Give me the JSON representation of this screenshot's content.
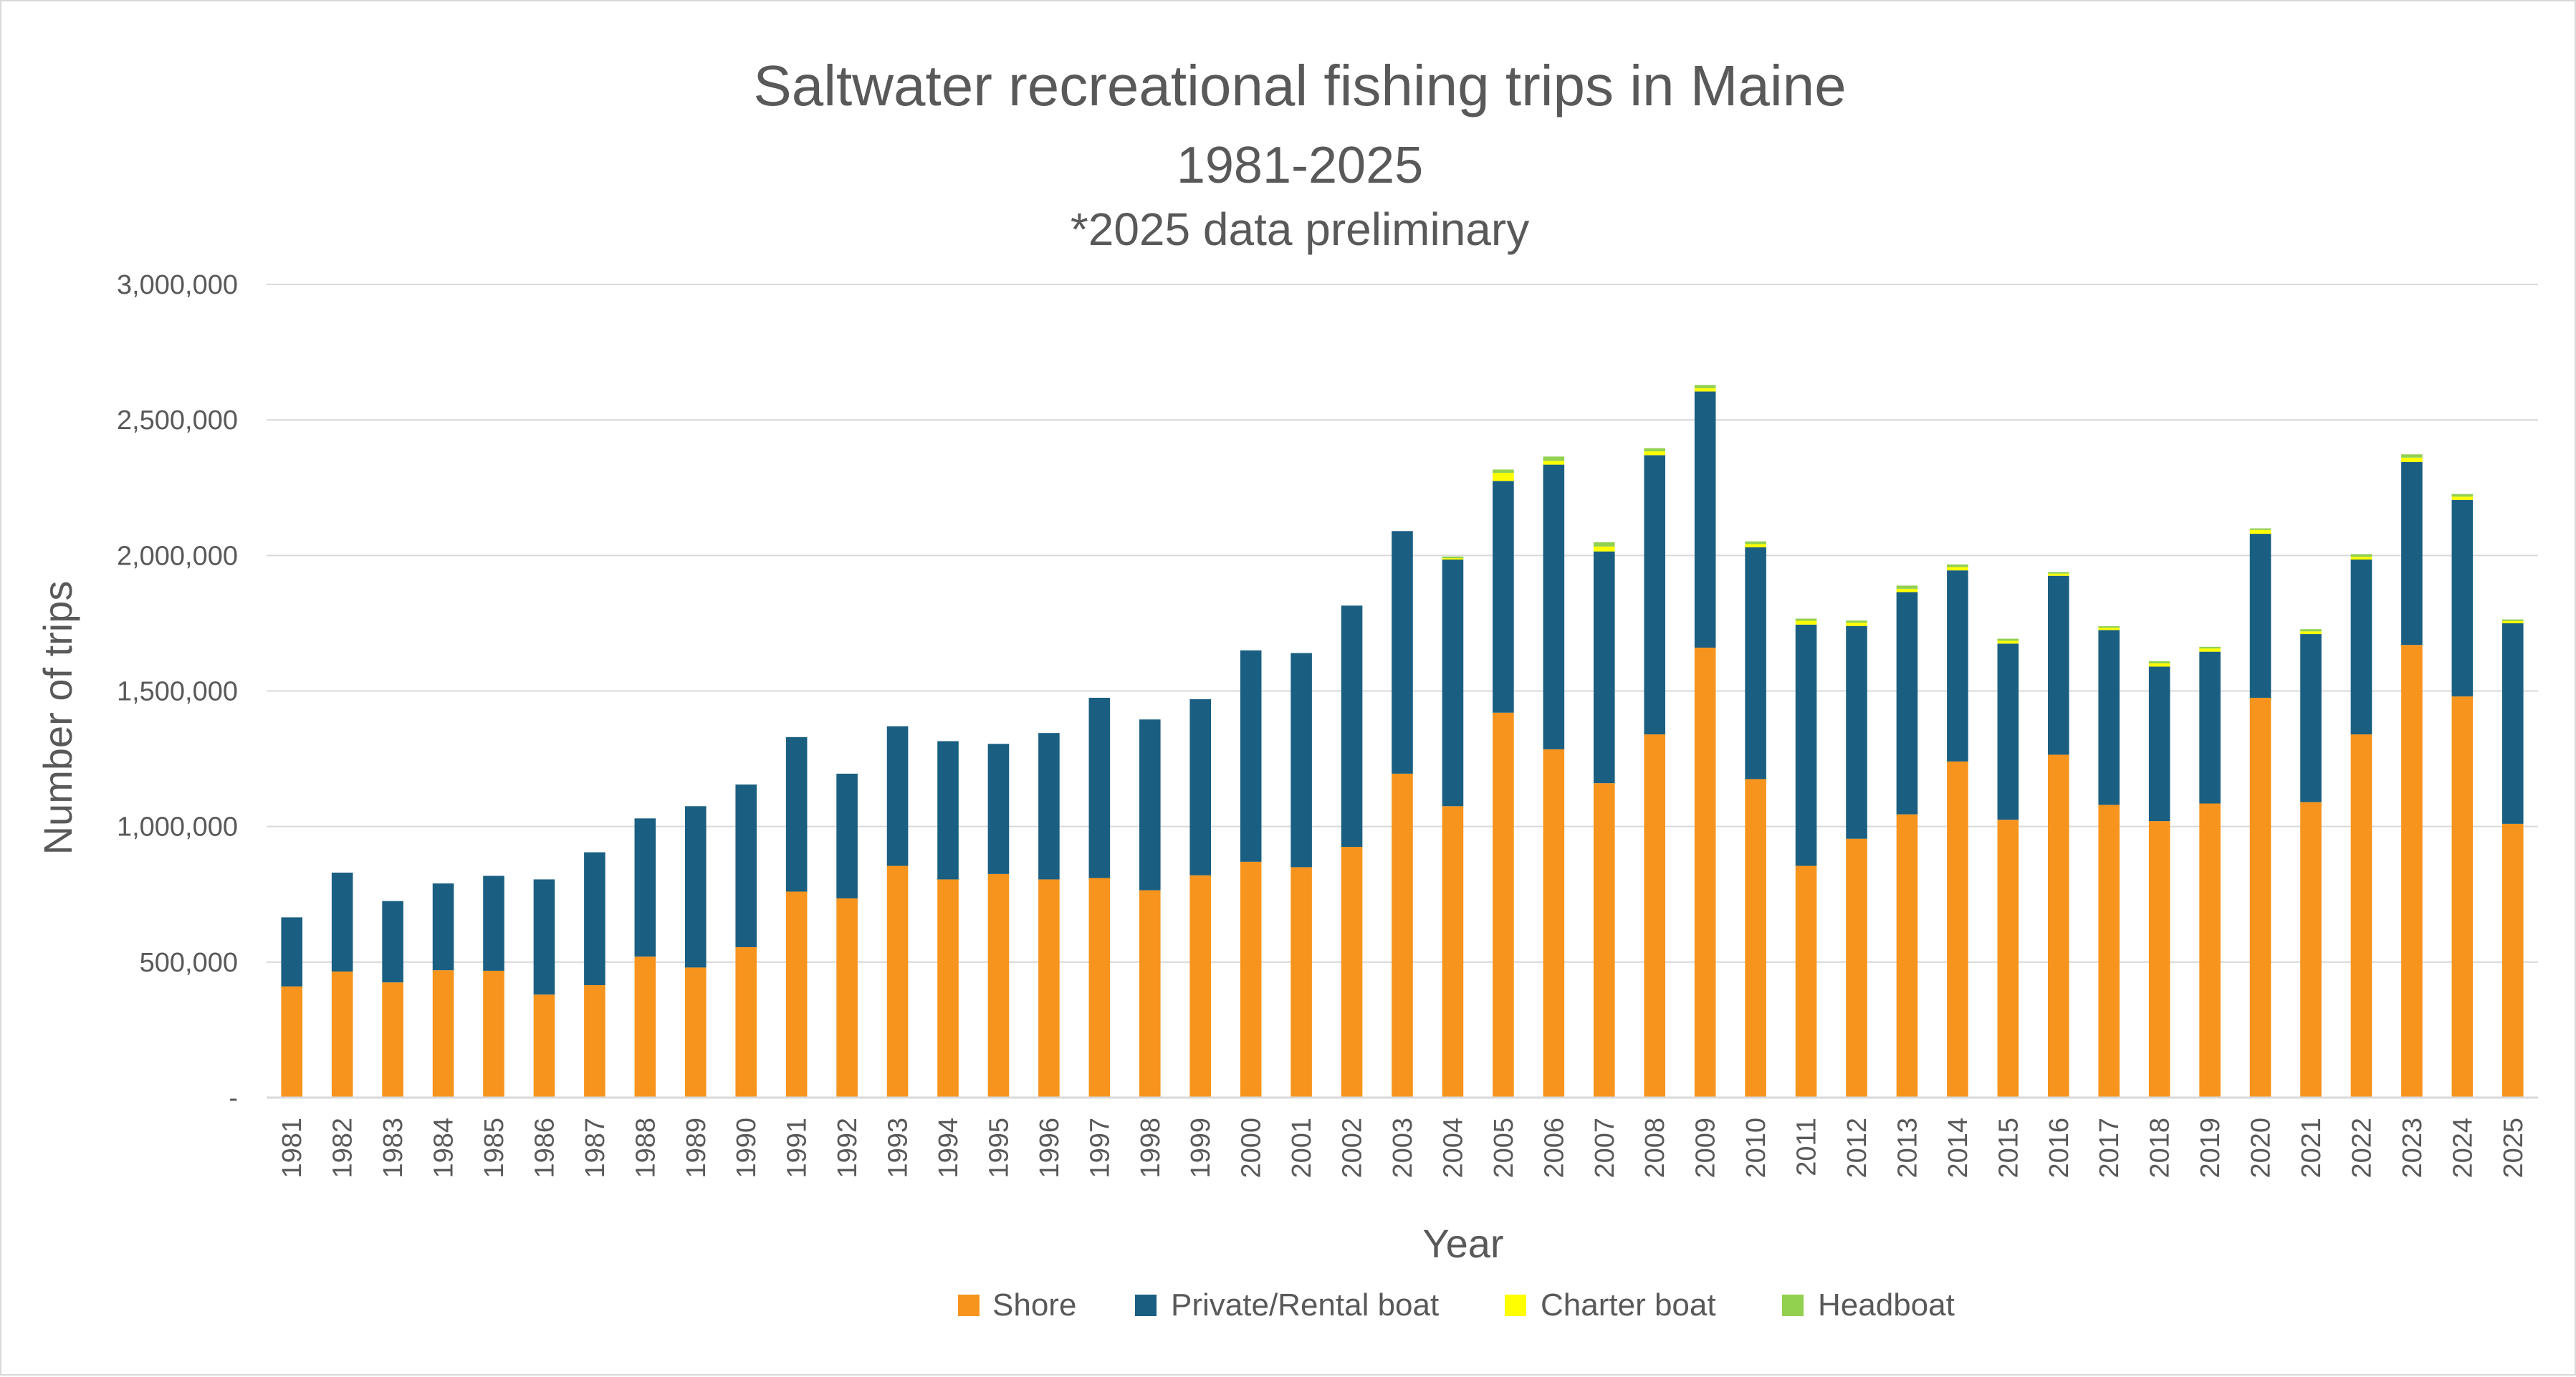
{
  "chart_data": {
    "type": "bar",
    "stacked": true,
    "title": "Saltwater recreational fishing trips in Maine",
    "subtitle": "1981-2025",
    "note": "*2025 data preliminary",
    "xlabel": "Year",
    "ylabel": "Number of trips",
    "ylim": [
      0,
      3000000
    ],
    "yticks": [
      "-",
      "500,000",
      "1,000,000",
      "1,500,000",
      "2,000,000",
      "2,500,000",
      "3,000,000"
    ],
    "ytick_values": [
      0,
      500000,
      1000000,
      1500000,
      2000000,
      2500000,
      3000000
    ],
    "grid": true,
    "legend_position": "bottom",
    "categories": [
      "1981",
      "1982",
      "1983",
      "1984",
      "1985",
      "1986",
      "1987",
      "1988",
      "1989",
      "1990",
      "1991",
      "1992",
      "1993",
      "1994",
      "1995",
      "1996",
      "1997",
      "1998",
      "1999",
      "2000",
      "2001",
      "2002",
      "2003",
      "2004",
      "2005",
      "2006",
      "2007",
      "2008",
      "2009",
      "2010",
      "2011",
      "2012",
      "2013",
      "2014",
      "2015",
      "2016",
      "2017",
      "2018",
      "2019",
      "2020",
      "2021",
      "2022",
      "2023",
      "2024",
      "2025"
    ],
    "series": [
      {
        "name": "Shore",
        "color": "#f7941d",
        "values": [
          410000,
          465000,
          425000,
          470000,
          468000,
          380000,
          415000,
          520000,
          480000,
          555000,
          760000,
          735000,
          855000,
          805000,
          825000,
          805000,
          810000,
          765000,
          820000,
          870000,
          850000,
          925000,
          1195000,
          1075000,
          1420000,
          1285000,
          1160000,
          1340000,
          1660000,
          1175000,
          855000,
          955000,
          1045000,
          1240000,
          1025000,
          1265000,
          1080000,
          1020000,
          1085000,
          1475000,
          1090000,
          1340000,
          1670000,
          1480000,
          1010000
        ]
      },
      {
        "name": "Private/Rental boat",
        "color": "#1a5f82",
        "values": [
          255000,
          365000,
          300000,
          320000,
          350000,
          425000,
          490000,
          510000,
          595000,
          600000,
          570000,
          460000,
          515000,
          510000,
          480000,
          540000,
          665000,
          630000,
          650000,
          780000,
          790000,
          890000,
          895000,
          910000,
          855000,
          1050000,
          855000,
          1030000,
          945000,
          855000,
          890000,
          785000,
          820000,
          705000,
          650000,
          660000,
          645000,
          570000,
          560000,
          605000,
          620000,
          645000,
          675000,
          725000,
          740000
        ]
      },
      {
        "name": "Charter boat",
        "color": "#ffff00",
        "values": [
          0,
          0,
          0,
          0,
          0,
          0,
          0,
          0,
          0,
          0,
          0,
          0,
          0,
          0,
          0,
          0,
          0,
          0,
          0,
          0,
          0,
          0,
          0,
          5000,
          30000,
          14000,
          18000,
          14000,
          12000,
          12000,
          14000,
          12000,
          12000,
          12000,
          10000,
          8000,
          8000,
          12000,
          12000,
          14000,
          10000,
          10000,
          16000,
          12000,
          8000
        ]
      },
      {
        "name": "Headboat",
        "color": "#92d050",
        "values": [
          0,
          0,
          0,
          0,
          0,
          0,
          0,
          0,
          0,
          0,
          0,
          0,
          0,
          0,
          0,
          0,
          0,
          0,
          0,
          0,
          0,
          0,
          0,
          6000,
          12000,
          16000,
          16000,
          12000,
          12000,
          10000,
          8000,
          8000,
          12000,
          10000,
          8000,
          6000,
          6000,
          8000,
          6000,
          6000,
          8000,
          10000,
          12000,
          10000,
          6000
        ]
      }
    ]
  }
}
